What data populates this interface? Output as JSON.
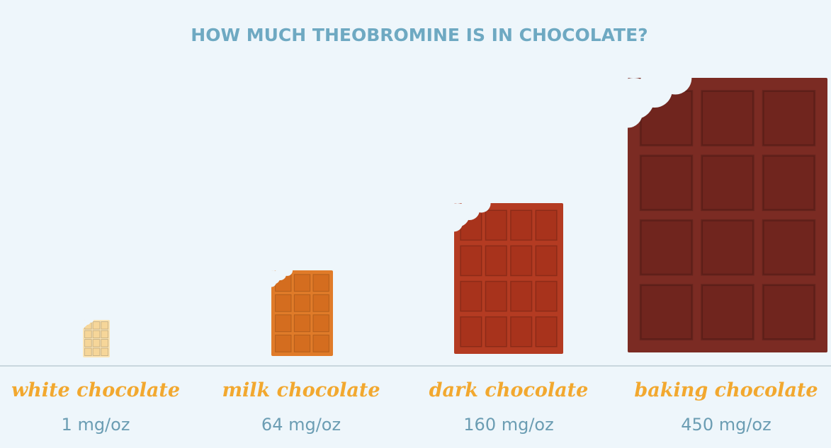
{
  "title": "HOW MUCH THEOBROMINE IS IN CHOCOLATE?",
  "items": [
    {
      "name": "white chocolate",
      "amount": "1 mg/oz"
    },
    {
      "name": "milk chocolate",
      "amount": "64 mg/oz"
    },
    {
      "name": "dark chocolate",
      "amount": "160 mg/oz"
    },
    {
      "name": "baking chocolate",
      "amount": "450 mg/oz"
    }
  ]
}
